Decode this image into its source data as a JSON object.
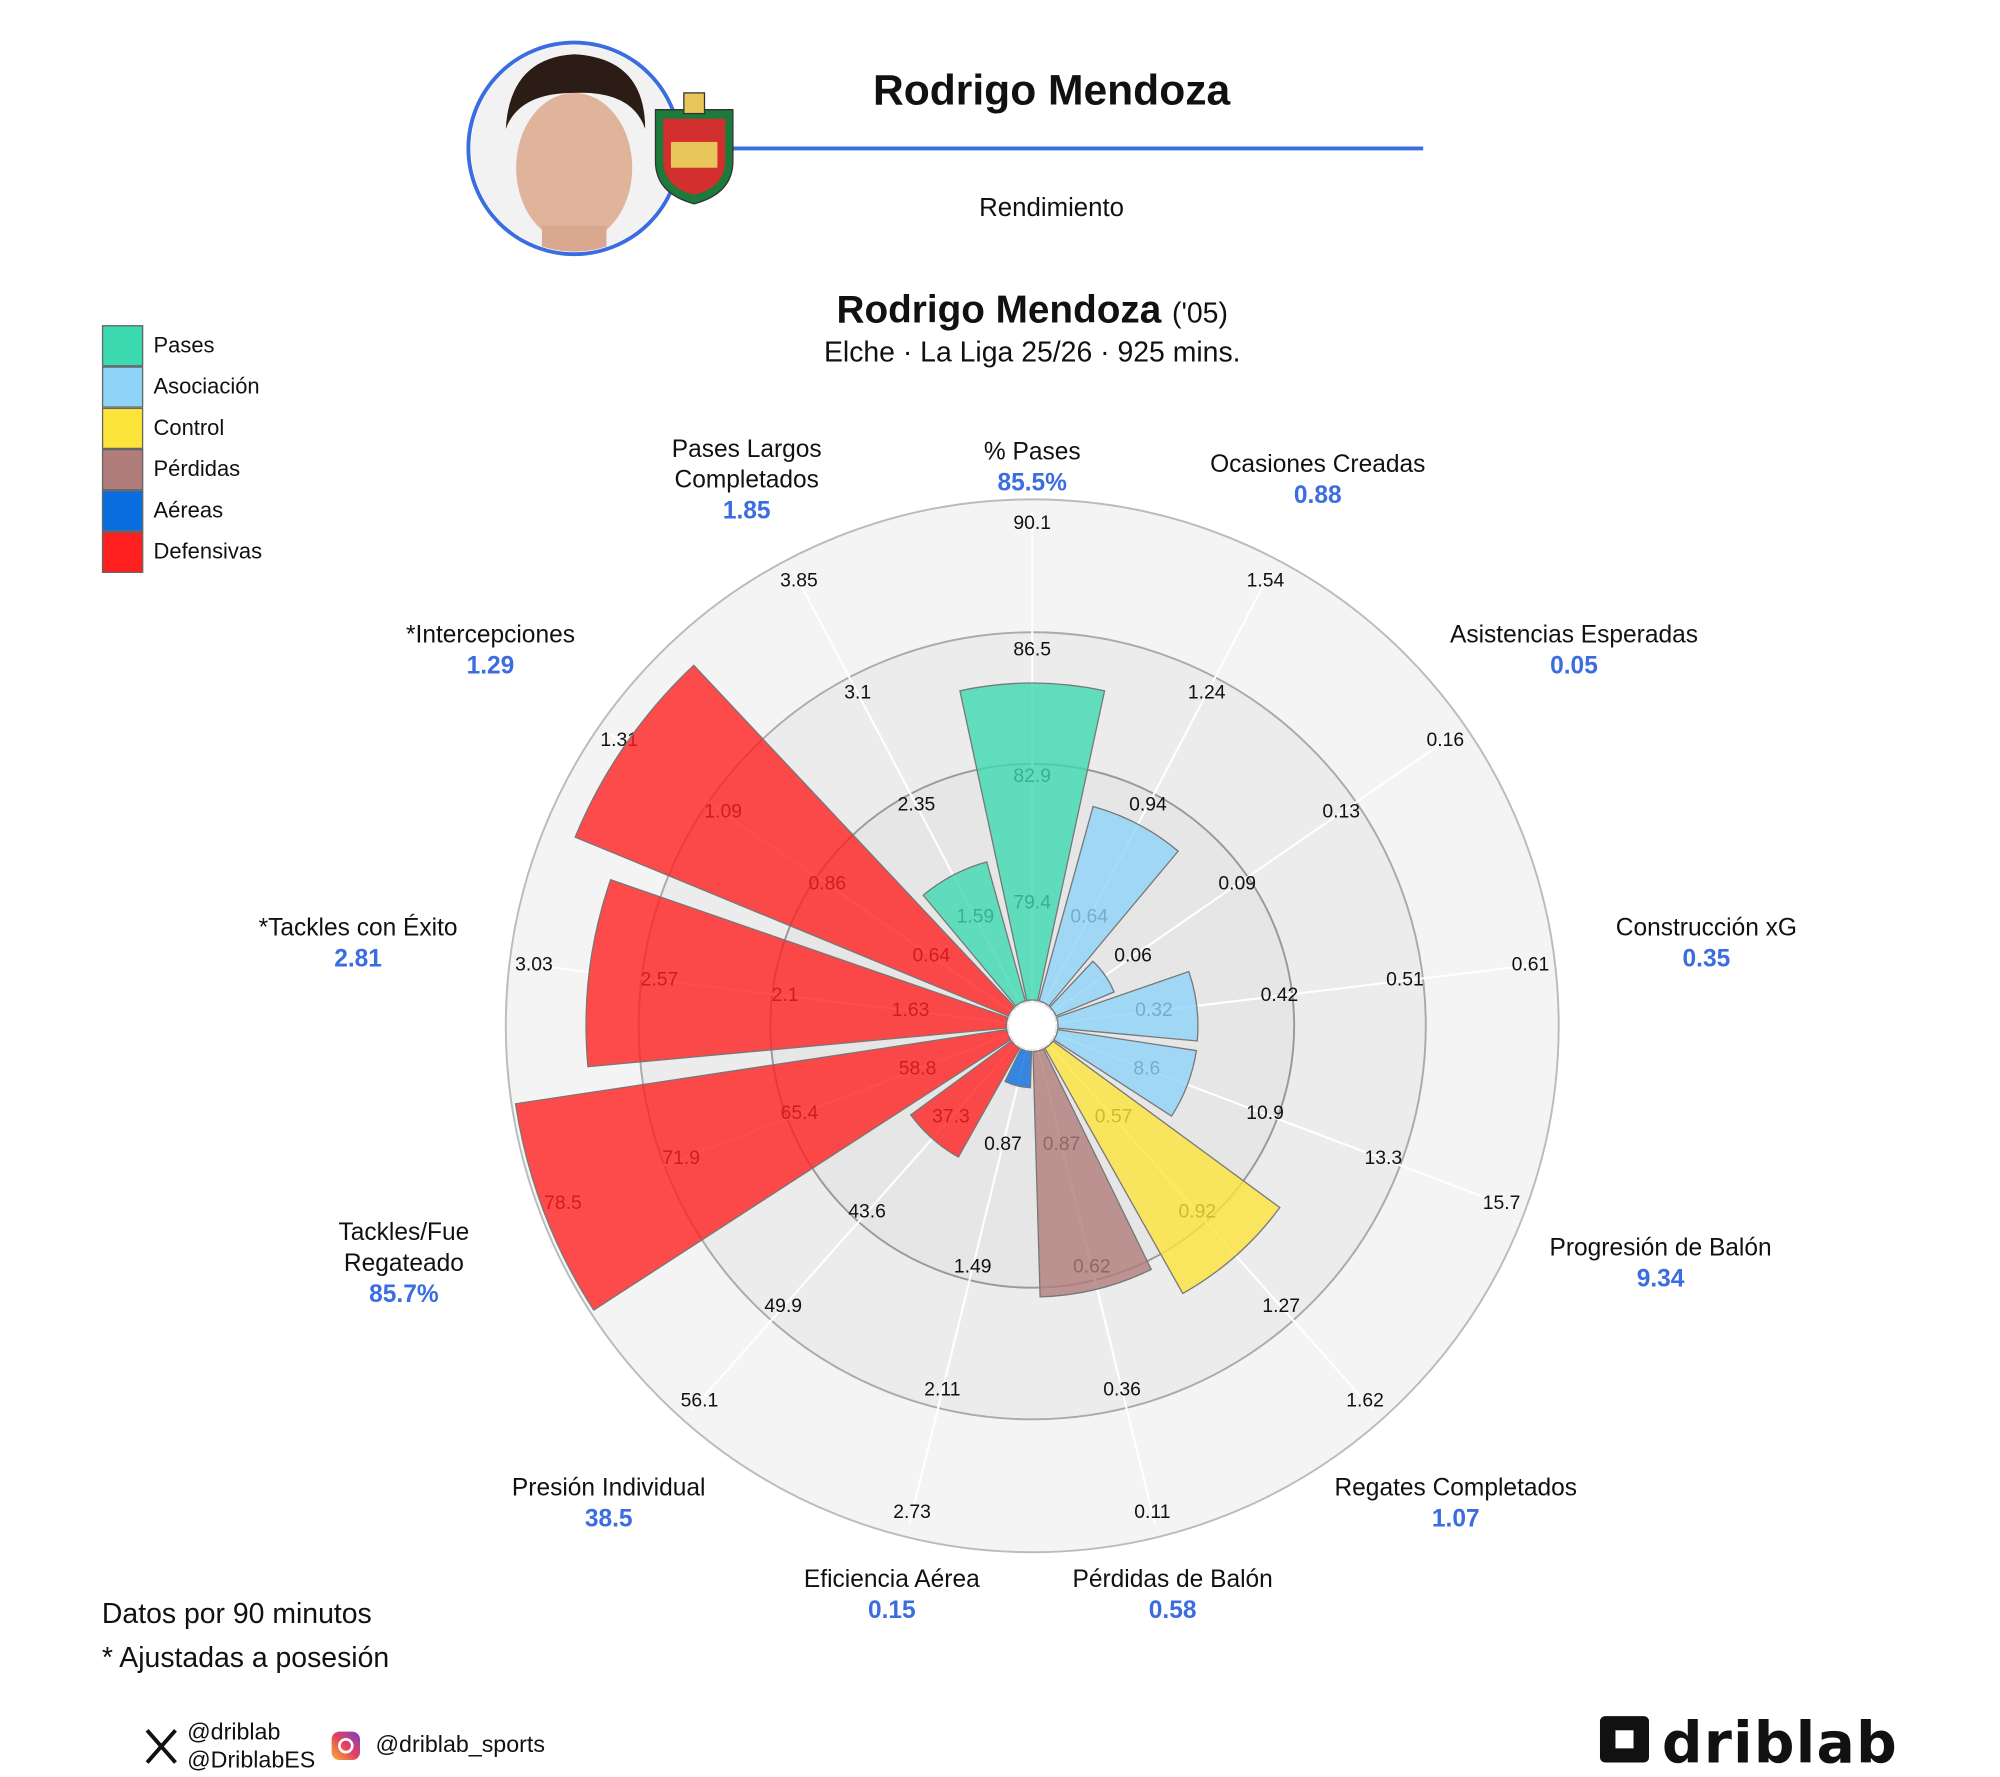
{
  "header": {
    "title": "Rodrigo Mendoza",
    "subtitle": "Rendimiento"
  },
  "chart_data": {
    "type": "polar_bar",
    "title": "Rodrigo Mendoza",
    "title_suffix": "('05)",
    "subtitle": "Elche · La Liga 25/26 · 925 mins.",
    "groups": [
      {
        "name": "Pases",
        "color": "#3dd9b0"
      },
      {
        "name": "Asociación",
        "color": "#8fd3f7"
      },
      {
        "name": "Control",
        "color": "#fce43b"
      },
      {
        "name": "Pérdidas",
        "color": "#b07d7b"
      },
      {
        "name": "Aéreas",
        "color": "#0a6de0"
      },
      {
        "name": "Defensivas",
        "color": "#ff1f1f"
      }
    ],
    "metrics": [
      {
        "name": "% Pases",
        "value": 85.5,
        "value_label": "85.5%",
        "group": 0,
        "ticks": [
          79.4,
          82.9,
          86.5,
          90.1
        ]
      },
      {
        "name": "Ocasiones Creadas",
        "value": 0.88,
        "group": 1,
        "ticks": [
          0.64,
          0.94,
          1.24,
          1.54
        ]
      },
      {
        "name": "Asistencias Esperadas",
        "value": 0.05,
        "group": 1,
        "ticks": [
          0.06,
          0.09,
          0.13,
          0.16
        ]
      },
      {
        "name": "Construcción xG",
        "value": 0.35,
        "group": 1,
        "ticks": [
          0.32,
          0.42,
          0.51,
          0.61
        ]
      },
      {
        "name": "Progresión de Balón",
        "value": 9.34,
        "group": 1,
        "ticks": [
          8.6,
          10.9,
          13.3,
          15.7
        ]
      },
      {
        "name": "Regates Completados",
        "value": 1.07,
        "group": 2,
        "ticks": [
          0.57,
          0.92,
          1.27,
          1.62
        ]
      },
      {
        "name": "Pérdidas de Balón",
        "value": 0.58,
        "group": 3,
        "ticks": [
          0.87,
          0.62,
          0.36,
          0.11
        ]
      },
      {
        "name": "Eficiencia Aérea",
        "value": 0.15,
        "group": 4,
        "ticks": [
          0.87,
          1.49,
          2.11,
          2.73
        ]
      },
      {
        "name": "Presión Individual",
        "value": 38.5,
        "group": 5,
        "ticks": [
          37.3,
          43.6,
          49.9,
          56.1
        ]
      },
      {
        "name": "Tackles/Fue\nRegateado",
        "value": 85.7,
        "value_label": "85.7%",
        "group": 5,
        "ticks": [
          58.8,
          65.4,
          71.9,
          78.5
        ]
      },
      {
        "name": "*Tackles con Éxito",
        "value": 2.81,
        "group": 5,
        "ticks": [
          1.63,
          2.1,
          2.57,
          3.03
        ]
      },
      {
        "name": "*Intercepciones",
        "value": 1.29,
        "group": 5,
        "ticks": [
          0.64,
          0.86,
          1.09,
          1.31
        ]
      },
      {
        "name": "Pases Largos\nCompletados",
        "value": 1.85,
        "group": 0,
        "ticks": [
          1.59,
          2.35,
          3.1,
          3.85
        ]
      }
    ]
  },
  "notes": [
    "Datos por 90 minutos",
    "* Ajustadas a posesión"
  ],
  "social": {
    "x": [
      "@driblab",
      "@DriblabES"
    ],
    "instagram": "@driblab_sports"
  },
  "logo": "driblab"
}
